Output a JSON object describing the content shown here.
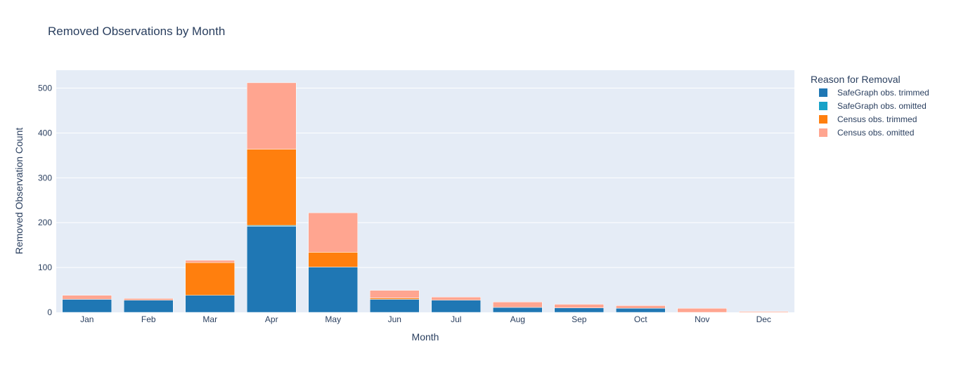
{
  "chart_data": {
    "type": "bar",
    "barmode": "stack",
    "title": "Removed Observations by Month",
    "xlabel": "Month",
    "ylabel": "Removed Observation Count",
    "ylim": [
      0,
      540
    ],
    "yticks": [
      0,
      100,
      200,
      300,
      400,
      500
    ],
    "grid": true,
    "legend_title": "Reason for Removal",
    "legend_position": "right",
    "categories": [
      "Jan",
      "Feb",
      "Mar",
      "Apr",
      "May",
      "Jun",
      "Jul",
      "Aug",
      "Sep",
      "Oct",
      "Nov",
      "Dec"
    ],
    "series": [
      {
        "name": "SafeGraph obs. trimmed",
        "color": "#1f77b4",
        "values": [
          29,
          27,
          38,
          192,
          101,
          29,
          27,
          11,
          10,
          9,
          0,
          0
        ]
      },
      {
        "name": "SafeGraph obs. omitted",
        "color": "#17a2c8",
        "values": [
          0,
          0,
          0,
          2,
          0,
          0,
          0,
          0,
          0,
          0,
          0,
          0
        ]
      },
      {
        "name": "Census obs. trimmed",
        "color": "#ff7f0e",
        "values": [
          0,
          0,
          73,
          170,
          33,
          3,
          0,
          0,
          0,
          0,
          0,
          0
        ]
      },
      {
        "name": "Census obs. omitted",
        "color": "#ffa590",
        "values": [
          9,
          4,
          5,
          148,
          88,
          17,
          7,
          12,
          8,
          6,
          9,
          2
        ]
      }
    ]
  }
}
